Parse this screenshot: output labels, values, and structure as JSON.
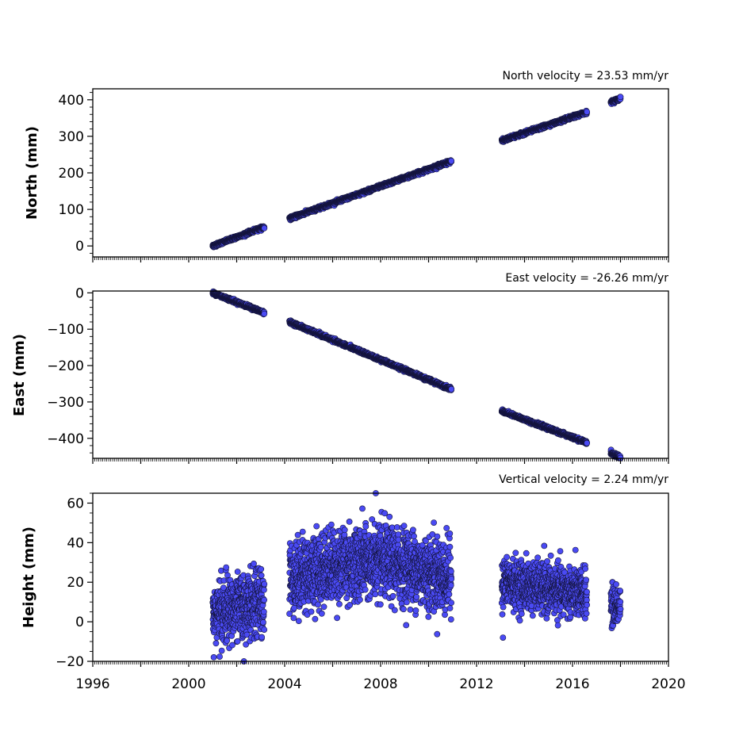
{
  "chart_data": [
    {
      "type": "scatter",
      "title": "North velocity = 23.53 mm/yr",
      "ylabel": "North (mm)",
      "ylim": [
        -30,
        430
      ],
      "yticks": [
        0,
        100,
        200,
        300,
        400
      ],
      "yticks_minor_step": 20,
      "xlim": [
        1996,
        2020
      ],
      "show_x_tick_labels": false,
      "grid": false,
      "velocity": 23.53,
      "segments": [
        {
          "start": 2001.0,
          "end": 2003.15,
          "y0": 0,
          "y1": 52,
          "noise": 2
        },
        {
          "start": 2004.2,
          "end": 2010.95,
          "y0": 75,
          "y1": 232,
          "noise": 2
        },
        {
          "start": 2013.05,
          "end": 2016.6,
          "y0": 288,
          "y1": 366,
          "noise": 2
        },
        {
          "start": 2017.6,
          "end": 2018.0,
          "y0": 393,
          "y1": 404,
          "noise": 2
        }
      ],
      "colors": {
        "fill": "#4a4af4",
        "stroke": "#14143c"
      }
    },
    {
      "type": "scatter",
      "title": "East velocity = -26.26 mm/yr",
      "ylabel": "East (mm)",
      "ylim": [
        -455,
        5
      ],
      "yticks": [
        0,
        -100,
        -200,
        -300,
        -400
      ],
      "yticks_minor_step": 20,
      "xlim": [
        1996,
        2020
      ],
      "show_x_tick_labels": false,
      "grid": false,
      "velocity": -26.26,
      "segments": [
        {
          "start": 2001.0,
          "end": 2003.15,
          "y0": 0,
          "y1": -55,
          "noise": 2
        },
        {
          "start": 2004.2,
          "end": 2010.95,
          "y0": -80,
          "y1": -265,
          "noise": 2
        },
        {
          "start": 2013.05,
          "end": 2016.6,
          "y0": -325,
          "y1": -412,
          "noise": 2
        },
        {
          "start": 2017.6,
          "end": 2018.0,
          "y0": -440,
          "y1": -452,
          "noise": 2
        }
      ],
      "colors": {
        "fill": "#4a4af4",
        "stroke": "#14143c"
      }
    },
    {
      "type": "scatter",
      "title": "Vertical velocity = 2.24 mm/yr",
      "ylabel": "Height (mm)",
      "ylim": [
        -20,
        65
      ],
      "yticks": [
        -20,
        0,
        20,
        40,
        60
      ],
      "yticks_minor_step": 5,
      "xlim": [
        1996,
        2020
      ],
      "xticks": [
        1996,
        2000,
        2004,
        2008,
        2012,
        2016,
        2020
      ],
      "xtick_labels": [
        "1996",
        "2000",
        "2004",
        "2008",
        "2012",
        "2016",
        "2020"
      ],
      "show_x_tick_labels": true,
      "grid": false,
      "velocity": 2.24,
      "segments": [
        {
          "start": 2001.0,
          "end": 2003.15,
          "y0": 4,
          "y1": 10,
          "noise": 8
        },
        {
          "start": 2004.2,
          "end": 2010.95,
          "y0": 22,
          "y1": 22,
          "noise": 9,
          "bulge": 8
        },
        {
          "start": 2013.05,
          "end": 2016.6,
          "y0": 20,
          "y1": 14,
          "noise": 6
        },
        {
          "start": 2017.6,
          "end": 2018.0,
          "y0": 8,
          "y1": 8,
          "noise": 5
        }
      ],
      "outliers": [
        [
          2013.1,
          -8
        ],
        [
          2007.8,
          65
        ],
        [
          2002.3,
          -20
        ]
      ],
      "colors": {
        "fill": "#4a4af4",
        "stroke": "#14143c"
      }
    }
  ]
}
